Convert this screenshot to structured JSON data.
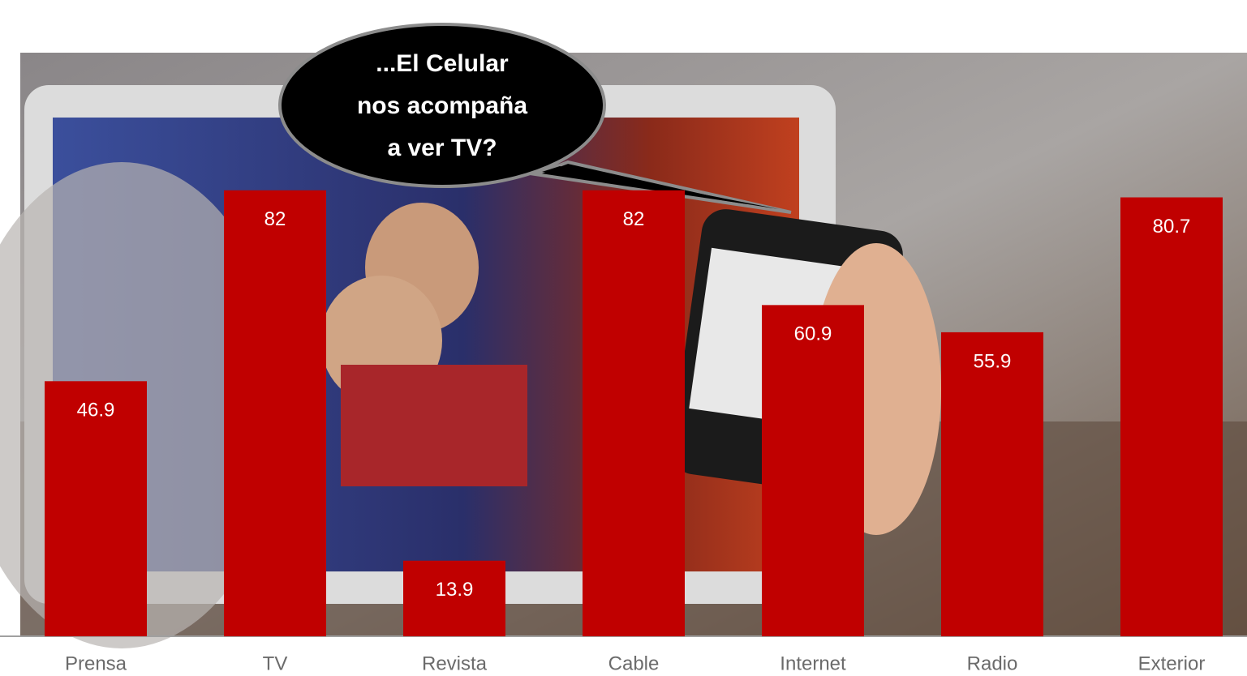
{
  "chart_data": {
    "type": "bar",
    "categories": [
      "Prensa",
      "TV",
      "Revista",
      "Cable",
      "Internet",
      "Radio",
      "Exterior"
    ],
    "values": [
      46.9,
      82,
      13.9,
      82,
      60.9,
      55.9,
      80.7
    ],
    "color": "#c00000",
    "ylim": [
      0,
      100
    ],
    "annotation": [
      "...El Celular",
      "nos acompaña",
      "a ver TV?"
    ]
  }
}
